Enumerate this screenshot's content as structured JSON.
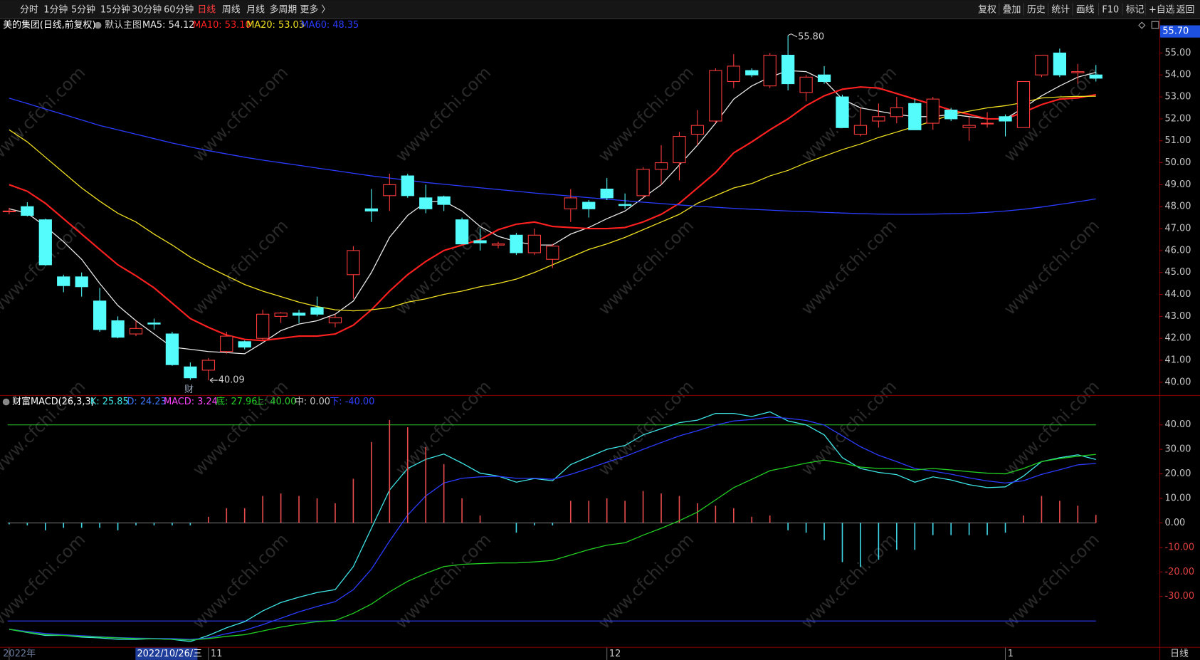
{
  "toolbar": {
    "left": [
      "分时",
      "1分钟",
      "5分钟",
      "15分钟",
      "30分钟",
      "60分钟",
      "日线",
      "周线",
      "月线",
      "多周期",
      "更多 〉"
    ],
    "right": [
      "复权",
      "叠加",
      "历史",
      "统计",
      "画线",
      "F10",
      "标记",
      "+自选",
      "返回"
    ]
  },
  "watermark": "www.cfchi.com",
  "chart_data": [
    {
      "type": "candlestick",
      "title": "美的集团(日线,前复权)",
      "subtitle": "默认主图",
      "up_color": "#ff3c3c",
      "down_color": "#54fcfc",
      "candles": [
        [
          47.8,
          47.95,
          47.65,
          47.8
        ],
        [
          48.0,
          48.2,
          47.55,
          47.6
        ],
        [
          47.4,
          47.45,
          45.3,
          45.35
        ],
        [
          44.8,
          44.9,
          44.1,
          44.4
        ],
        [
          44.8,
          45.0,
          43.9,
          44.35
        ],
        [
          43.7,
          44.3,
          42.3,
          42.4
        ],
        [
          42.8,
          43.0,
          42.0,
          42.05
        ],
        [
          42.2,
          42.8,
          42.1,
          42.45
        ],
        [
          42.7,
          42.9,
          42.4,
          42.65
        ],
        [
          42.2,
          42.3,
          40.75,
          40.8
        ],
        [
          40.7,
          40.9,
          40.1,
          40.2
        ],
        [
          40.55,
          41.1,
          40.09,
          41.0
        ],
        [
          41.4,
          42.3,
          41.3,
          42.1
        ],
        [
          41.85,
          41.9,
          41.5,
          41.6
        ],
        [
          42.0,
          43.3,
          41.9,
          43.1
        ],
        [
          43.0,
          43.2,
          42.7,
          43.15
        ],
        [
          43.15,
          43.3,
          42.7,
          43.05
        ],
        [
          43.4,
          43.9,
          43.0,
          43.1
        ],
        [
          42.7,
          43.1,
          42.5,
          42.95
        ],
        [
          44.9,
          46.2,
          43.8,
          46.0
        ],
        [
          47.9,
          48.8,
          47.3,
          47.8
        ],
        [
          48.5,
          49.5,
          47.8,
          49.0
        ],
        [
          49.4,
          49.5,
          48.4,
          48.5
        ],
        [
          48.4,
          49.0,
          47.7,
          47.9
        ],
        [
          48.45,
          48.5,
          47.8,
          48.1
        ],
        [
          47.4,
          47.5,
          46.3,
          46.3
        ],
        [
          46.45,
          47.0,
          46.0,
          46.35
        ],
        [
          46.25,
          46.4,
          46.1,
          46.3
        ],
        [
          46.7,
          46.8,
          45.8,
          45.9
        ],
        [
          45.9,
          47.0,
          45.8,
          46.7
        ],
        [
          45.6,
          46.3,
          45.2,
          46.2
        ],
        [
          47.9,
          48.8,
          47.3,
          48.4
        ],
        [
          48.2,
          48.3,
          47.5,
          47.9
        ],
        [
          48.8,
          49.3,
          48.3,
          48.4
        ],
        [
          48.1,
          48.6,
          47.9,
          48.05
        ],
        [
          48.5,
          49.8,
          48.4,
          49.7
        ],
        [
          49.7,
          50.8,
          49.0,
          50.0
        ],
        [
          50.0,
          51.4,
          49.2,
          51.2
        ],
        [
          51.3,
          52.4,
          50.8,
          51.7
        ],
        [
          51.9,
          54.3,
          51.8,
          54.2
        ],
        [
          53.7,
          54.95,
          53.4,
          54.4
        ],
        [
          54.2,
          54.3,
          53.9,
          54.0
        ],
        [
          53.5,
          55.0,
          53.4,
          54.9
        ],
        [
          54.9,
          55.8,
          53.3,
          53.6
        ],
        [
          53.2,
          54.0,
          52.8,
          53.9
        ],
        [
          54.0,
          54.4,
          53.6,
          53.7
        ],
        [
          53.0,
          53.1,
          51.6,
          51.6
        ],
        [
          51.3,
          52.5,
          51.2,
          51.7
        ],
        [
          51.9,
          52.7,
          51.6,
          52.1
        ],
        [
          52.1,
          53.0,
          51.8,
          52.5
        ],
        [
          52.7,
          52.9,
          51.5,
          51.5
        ],
        [
          51.8,
          53.0,
          51.5,
          52.9
        ],
        [
          52.4,
          52.5,
          51.9,
          52.0
        ],
        [
          51.6,
          52.1,
          51.0,
          51.7
        ],
        [
          51.8,
          52.3,
          51.6,
          51.8
        ],
        [
          52.1,
          52.2,
          51.2,
          51.9
        ],
        [
          51.6,
          53.7,
          51.6,
          53.7
        ],
        [
          54.0,
          54.9,
          53.9,
          54.9
        ],
        [
          55.0,
          55.2,
          53.9,
          54.0
        ],
        [
          54.1,
          54.5,
          53.6,
          54.15
        ],
        [
          54.0,
          54.45,
          53.7,
          53.85
        ]
      ],
      "series": [
        {
          "label": "MA5: 54.12",
          "color": "#e8e8e8",
          "values": [
            47.9,
            47.7,
            47.1,
            46.4,
            45.6,
            44.5,
            43.5,
            42.8,
            42.2,
            41.6,
            41.5,
            41.4,
            41.35,
            41.3,
            41.8,
            42.35,
            42.65,
            42.8,
            43.1,
            43.7,
            45.0,
            46.6,
            47.6,
            48.2,
            48.25,
            47.8,
            47.1,
            46.65,
            46.4,
            46.25,
            46.25,
            46.75,
            47.05,
            47.45,
            47.8,
            48.4,
            49.0,
            49.9,
            50.8,
            51.8,
            52.9,
            53.5,
            53.9,
            54.2,
            54.15,
            53.75,
            52.9,
            52.5,
            52.35,
            52.2,
            52.1,
            52.1,
            52.2,
            52.1,
            52.0,
            52.0,
            52.5,
            53.05,
            53.5,
            53.9,
            54.12
          ]
        },
        {
          "label": "MA10: 53.10",
          "color": "#ff2020",
          "width": 2,
          "values": [
            49.0,
            48.7,
            48.15,
            47.45,
            46.75,
            46.05,
            45.35,
            44.85,
            44.3,
            43.6,
            42.9,
            42.5,
            42.15,
            41.95,
            41.9,
            42.0,
            42.1,
            42.1,
            42.2,
            42.6,
            43.3,
            44.15,
            44.9,
            45.5,
            46.0,
            46.25,
            46.5,
            46.95,
            47.2,
            47.3,
            47.1,
            47.05,
            47.0,
            47.0,
            47.05,
            47.3,
            47.65,
            48.15,
            48.85,
            49.55,
            50.45,
            50.95,
            51.5,
            52.0,
            52.6,
            53.05,
            53.35,
            53.45,
            53.4,
            53.15,
            52.9,
            52.65,
            52.4,
            52.2,
            52.0,
            52.0,
            52.3,
            52.65,
            52.9,
            52.95,
            53.1
          ]
        },
        {
          "label": "MA20: 53.03",
          "color": "#f0e020",
          "values": [
            51.5,
            50.95,
            50.25,
            49.55,
            48.85,
            48.25,
            47.7,
            47.3,
            46.75,
            46.25,
            45.7,
            45.25,
            44.85,
            44.45,
            44.15,
            43.9,
            43.65,
            43.45,
            43.3,
            43.25,
            43.3,
            43.4,
            43.65,
            43.8,
            44.0,
            44.15,
            44.35,
            44.5,
            44.7,
            45.0,
            45.35,
            45.7,
            46.05,
            46.3,
            46.6,
            46.95,
            47.3,
            47.65,
            48.15,
            48.5,
            48.85,
            49.05,
            49.4,
            49.65,
            50.0,
            50.3,
            50.6,
            50.85,
            51.15,
            51.4,
            51.65,
            51.9,
            52.2,
            52.35,
            52.5,
            52.6,
            52.75,
            52.95,
            53.0,
            53.02,
            53.03
          ]
        },
        {
          "label": "MA60: 48.35",
          "color": "#2a3cff",
          "values": [
            52.94,
            52.7,
            52.45,
            52.2,
            51.95,
            51.7,
            51.5,
            51.3,
            51.1,
            50.9,
            50.72,
            50.55,
            50.4,
            50.25,
            50.12,
            50.0,
            49.88,
            49.76,
            49.64,
            49.52,
            49.4,
            49.3,
            49.2,
            49.1,
            49.02,
            48.94,
            48.86,
            48.78,
            48.7,
            48.62,
            48.55,
            48.48,
            48.41,
            48.34,
            48.27,
            48.2,
            48.14,
            48.08,
            48.02,
            47.97,
            47.92,
            47.88,
            47.84,
            47.8,
            47.77,
            47.74,
            47.71,
            47.68,
            47.66,
            47.65,
            47.65,
            47.66,
            47.68,
            47.7,
            47.74,
            47.8,
            47.88,
            47.98,
            48.1,
            48.22,
            48.35
          ]
        }
      ],
      "ylim": [
        39.45,
        56.4
      ],
      "yticks": [
        {
          "value": 55,
          "label": "55.00"
        },
        {
          "value": 54,
          "label": "54.00"
        },
        {
          "value": 53,
          "label": "53.00"
        },
        {
          "value": 52,
          "label": "52.00"
        },
        {
          "value": 51,
          "label": "51.00"
        },
        {
          "value": 50,
          "label": "50.00"
        },
        {
          "value": 49,
          "label": "49.00"
        },
        {
          "value": 48,
          "label": "48.00"
        },
        {
          "value": 47,
          "label": "47.00"
        },
        {
          "value": 46,
          "label": "46.00"
        },
        {
          "value": 45,
          "label": "45.00"
        },
        {
          "value": 44,
          "label": "44.00"
        },
        {
          "value": 43,
          "label": "43.00"
        },
        {
          "value": 42,
          "label": "42.00"
        },
        {
          "value": 41,
          "label": "41.00"
        },
        {
          "value": 40,
          "label": "40.00"
        }
      ],
      "high_label": {
        "value": 55.8,
        "label": "55.80"
      },
      "low_label": {
        "value": 40.09,
        "label": "40.09"
      },
      "event_marker": "财",
      "price_marker": "55.70"
    },
    {
      "type": "line",
      "title": "财富MACD(26,3,3)",
      "categories": [
        "2022年",
        null,
        null,
        null,
        null,
        null,
        null,
        null,
        null,
        null,
        null,
        "11",
        null,
        null,
        null,
        null,
        null,
        null,
        null,
        null,
        null,
        null,
        null,
        null,
        null,
        null,
        null,
        null,
        null,
        null,
        null,
        null,
        null,
        "12",
        null,
        null,
        null,
        null,
        null,
        null,
        null,
        null,
        null,
        null,
        null,
        null,
        null,
        null,
        null,
        null,
        null,
        null,
        null,
        null,
        null,
        "1",
        null,
        null,
        null,
        null,
        null
      ],
      "series": [
        {
          "label": "K: 25.85",
          "color": "#3ee6e6",
          "values": [
            -43.4,
            -44.7,
            -45.9,
            -45.9,
            -46.6,
            -46.9,
            -47.5,
            -47.5,
            -47.2,
            -47.5,
            -48.4,
            -45.9,
            -42.8,
            -40.3,
            -35.9,
            -32.5,
            -30.3,
            -28.4,
            -27.2,
            -17.8,
            -2.2,
            13.4,
            22.2,
            25.9,
            28.1,
            24.4,
            20.3,
            19.1,
            16.6,
            18.1,
            17.2,
            23.8,
            26.9,
            30.0,
            31.6,
            35.9,
            38.4,
            40.9,
            41.9,
            44.7,
            44.7,
            43.4,
            45.3,
            41.6,
            40.0,
            35.9,
            26.6,
            22.2,
            20.6,
            19.7,
            16.6,
            18.8,
            17.5,
            15.6,
            14.4,
            14.7,
            19.1,
            25.0,
            26.6,
            27.8,
            25.85
          ]
        },
        {
          "label": "D: 24.23",
          "color": "#2b3cff",
          "label_color": "#3a7aff",
          "values": [
            -43.4,
            -44.3,
            -45.1,
            -45.6,
            -46.0,
            -46.4,
            -46.8,
            -47.0,
            -47.1,
            -47.2,
            -47.5,
            -46.9,
            -45.2,
            -43.8,
            -41.5,
            -38.9,
            -36.3,
            -34.1,
            -32.1,
            -27.2,
            -18.9,
            -7.4,
            3.2,
            11.0,
            16.3,
            18.2,
            18.8,
            19.0,
            18.2,
            18.2,
            17.8,
            19.8,
            22.2,
            24.8,
            27.1,
            30.0,
            32.8,
            35.5,
            37.6,
            39.9,
            41.6,
            42.2,
            43.2,
            42.7,
            41.8,
            39.9,
            35.5,
            31.1,
            27.6,
            25.0,
            22.2,
            21.1,
            19.9,
            18.4,
            17.1,
            16.3,
            17.2,
            19.8,
            21.7,
            23.7,
            24.23
          ]
        },
        {
          "label": "MACD: 3.24",
          "kind": "bar",
          "color": "#e84c4c",
          "negative_color": "#40d8e8",
          "label_color": "#ff44ff",
          "values": [
            -0.6,
            -1,
            -3,
            -2,
            -2,
            -2,
            -3,
            -1,
            -1,
            -1,
            -1,
            2.5,
            6,
            6,
            11,
            12,
            11,
            10,
            8,
            18,
            33,
            42,
            39,
            31,
            24,
            10,
            3,
            0,
            -4,
            -1,
            -1,
            9,
            9,
            10,
            9,
            13,
            12,
            11,
            8,
            7,
            6,
            2.5,
            3,
            -3,
            -4,
            -7,
            -16,
            -18,
            -15,
            -11,
            -11,
            -5,
            -5,
            -5,
            -5,
            -4,
            3,
            11,
            9,
            7,
            3.24
          ]
        },
        {
          "label": "底: 27.96",
          "color": "#22d022",
          "values": [
            -43.4,
            -44.6,
            -45.6,
            -45.9,
            -46.3,
            -46.6,
            -46.9,
            -47.2,
            -47.3,
            -47.5,
            -47.8,
            -47.2,
            -46.3,
            -45.6,
            -44.1,
            -42.5,
            -41.3,
            -40.3,
            -39.8,
            -36.9,
            -33.1,
            -28.1,
            -23.8,
            -20.6,
            -17.8,
            -16.9,
            -16.6,
            -16.3,
            -16.3,
            -15.9,
            -15.3,
            -13.1,
            -10.9,
            -9.1,
            -8.1,
            -5.0,
            -2.2,
            0.9,
            4.4,
            9.4,
            14.4,
            17.8,
            21.3,
            22.8,
            24.4,
            25.6,
            24.4,
            22.8,
            22.2,
            22.2,
            21.6,
            22.2,
            21.6,
            20.9,
            20.3,
            20.0,
            22.2,
            25.0,
            26.3,
            27.2,
            27.96
          ]
        }
      ],
      "reference_lines": [
        {
          "label": "上: 40.00",
          "value": 40,
          "color": "#2cc82c"
        },
        {
          "label": "中: 0.00",
          "value": 0,
          "color": "#c8c8c8"
        },
        {
          "label": "下: -40.00",
          "value": -40,
          "color": "#3040ff"
        }
      ],
      "ylim": [
        -50.6,
        50.9
      ],
      "yticks": [
        {
          "value": 40,
          "label": "40.00"
        },
        {
          "value": 30,
          "label": "30.00"
        },
        {
          "value": 20,
          "label": "20.00"
        },
        {
          "value": 10,
          "label": "10.00"
        },
        {
          "value": 0,
          "label": "0.00"
        },
        {
          "value": -10,
          "label": "-10.00"
        },
        {
          "value": -20,
          "label": "-20.00"
        },
        {
          "value": -30,
          "label": "-30.00"
        }
      ],
      "cursor_label": "2022/10/26/三",
      "period_label": "日线"
    }
  ]
}
